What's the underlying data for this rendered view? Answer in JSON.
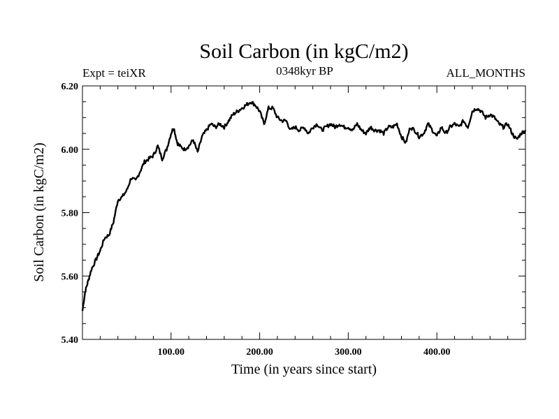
{
  "chart_data": {
    "type": "line",
    "title": "Soil Carbon (in kgC/m2)",
    "subtitle_left": "Expt = teiXR",
    "subtitle_center": "0348kyr BP",
    "subtitle_right": "ALL_MONTHS",
    "xlabel": "Time (in years since start)",
    "ylabel": "Soil Carbon (in kgC/m2)",
    "xlim": [
      0,
      500
    ],
    "ylim": [
      5.4,
      6.2
    ],
    "x_ticks": [
      100,
      200,
      300,
      400
    ],
    "x_tick_labels": [
      "100.00",
      "200.00",
      "300.00",
      "400.00"
    ],
    "x_minor_step": 20,
    "y_ticks": [
      5.4,
      5.6,
      5.8,
      6.0,
      6.2
    ],
    "y_tick_labels": [
      "5.40",
      "5.60",
      "5.80",
      "6.00",
      "6.20"
    ],
    "y_minor_step": 0.05,
    "series": [
      {
        "name": "Soil Carbon",
        "color": "#000000",
        "x": [
          0,
          3,
          6,
          10,
          15,
          20,
          25,
          30,
          35,
          40,
          45,
          50,
          55,
          60,
          65,
          70,
          75,
          80,
          85,
          90,
          95,
          100,
          103,
          107,
          110,
          115,
          120,
          125,
          130,
          135,
          140,
          145,
          150,
          155,
          160,
          165,
          170,
          175,
          180,
          185,
          190,
          195,
          200,
          205,
          210,
          215,
          220,
          225,
          230,
          235,
          240,
          245,
          250,
          255,
          260,
          265,
          270,
          275,
          280,
          285,
          290,
          295,
          300,
          305,
          310,
          315,
          320,
          325,
          330,
          335,
          340,
          345,
          350,
          355,
          360,
          365,
          370,
          375,
          380,
          385,
          390,
          395,
          400,
          405,
          410,
          415,
          420,
          425,
          430,
          435,
          440,
          445,
          450,
          455,
          460,
          465,
          470,
          475,
          480,
          485,
          490,
          495,
          500
        ],
        "values": [
          5.49,
          5.55,
          5.58,
          5.62,
          5.65,
          5.68,
          5.72,
          5.73,
          5.77,
          5.84,
          5.85,
          5.87,
          5.91,
          5.9,
          5.93,
          5.96,
          5.97,
          5.98,
          6.01,
          5.97,
          6.0,
          6.05,
          6.07,
          6.02,
          6.01,
          6.0,
          6.01,
          6.03,
          5.99,
          6.04,
          6.06,
          6.08,
          6.07,
          6.08,
          6.07,
          6.09,
          6.11,
          6.12,
          6.13,
          6.14,
          6.15,
          6.14,
          6.12,
          6.08,
          6.13,
          6.13,
          6.1,
          6.09,
          6.09,
          6.06,
          6.07,
          6.06,
          6.07,
          6.05,
          6.07,
          6.08,
          6.06,
          6.07,
          6.08,
          6.07,
          6.08,
          6.07,
          6.07,
          6.06,
          6.08,
          6.06,
          6.05,
          6.07,
          6.06,
          6.06,
          6.05,
          6.07,
          6.07,
          6.08,
          6.04,
          6.02,
          6.07,
          6.06,
          6.04,
          6.05,
          6.08,
          6.06,
          6.04,
          6.07,
          6.05,
          6.07,
          6.08,
          6.07,
          6.09,
          6.07,
          6.12,
          6.13,
          6.12,
          6.1,
          6.11,
          6.1,
          6.08,
          6.07,
          6.08,
          6.05,
          6.03,
          6.05,
          6.06
        ]
      }
    ]
  }
}
